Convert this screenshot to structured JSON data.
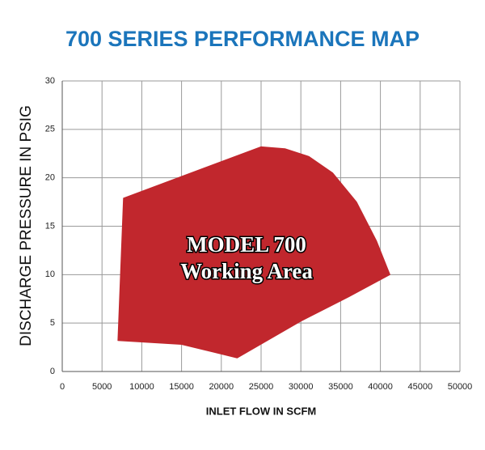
{
  "chart_data": {
    "type": "area",
    "title": "700 SERIES PERFORMANCE MAP",
    "x_label": "INLET FLOW IN SCFM",
    "y_label": "DISCHARGE PRESSURE IN PSIG",
    "annotations": [
      "MODEL 700",
      "Working Area"
    ],
    "color": "#c1272d",
    "x": [
      7000,
      7700,
      25000,
      28000,
      31000,
      34000,
      37000,
      39500,
      41200,
      36000,
      30000,
      22000,
      19000,
      15000
    ],
    "values": [
      3.2,
      17.9,
      23.2,
      23.0,
      22.2,
      20.5,
      17.5,
      13.5,
      10,
      7.7,
      5.2,
      1.4,
      2.0,
      2.8
    ],
    "xlim": [
      0,
      50000
    ],
    "ylim": [
      0,
      30
    ],
    "xticks": [
      0,
      5000,
      10000,
      15000,
      20000,
      25000,
      30000,
      35000,
      40000,
      45000,
      50000
    ],
    "yticks": [
      0,
      5,
      10,
      15,
      20,
      25,
      30
    ],
    "grid": true
  }
}
